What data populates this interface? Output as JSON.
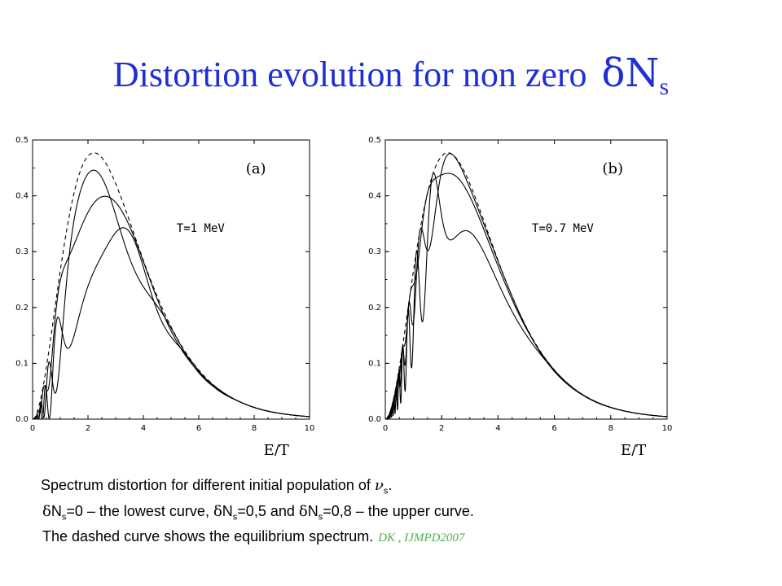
{
  "title": {
    "text": "Distortion  evolution for non zero",
    "symbol": "δN",
    "subscript": "s"
  },
  "chart_data": [
    {
      "type": "line",
      "panel_label": "(a)",
      "annotation": "T=1  MeV",
      "xlabel": "E/T",
      "xlim": [
        0,
        10
      ],
      "ylim": [
        0,
        0.5
      ],
      "x_ticks": [
        "0",
        "2",
        "4",
        "6",
        "8",
        "10"
      ],
      "y_ticks": [
        "0.0",
        "0.1",
        "0.2",
        "0.3",
        "0.4",
        "0.5"
      ],
      "series_params": [
        {
          "style": "dashed",
          "a": 0.0,
          "f0": 0,
          "f1": 0,
          "shift": 0.0
        },
        {
          "style": "solid",
          "a": 0.6,
          "f0": 4.2,
          "f1": 2.4,
          "shift": 0.1
        },
        {
          "style": "solid",
          "a": 0.95,
          "f0": 5.0,
          "f1": 3.1,
          "shift": 0.22
        },
        {
          "style": "solid",
          "a": 1.0,
          "f0": 6.0,
          "f1": 3.8,
          "shift": 0.35
        }
      ]
    },
    {
      "type": "line",
      "panel_label": "(b)",
      "annotation": "T=0.7  MeV",
      "xlabel": "E/T",
      "xlim": [
        0,
        10
      ],
      "ylim": [
        0,
        0.5
      ],
      "x_ticks": [
        "0",
        "2",
        "4",
        "6",
        "8",
        "10"
      ],
      "y_ticks": [
        "0.0",
        "0.1",
        "0.2",
        "0.3",
        "0.4",
        "0.5"
      ],
      "series_params": [
        {
          "style": "dashed",
          "a": 0.0,
          "f0": 0,
          "f1": 0,
          "shift": 0.0
        },
        {
          "style": "solid",
          "a": 0.22,
          "f0": 9.0,
          "f1": 2.3,
          "shift": 0.0
        },
        {
          "style": "solid",
          "a": 0.55,
          "f0": 11.0,
          "f1": 2.6,
          "shift": 0.0
        },
        {
          "style": "solid",
          "a": 0.95,
          "f0": 13.0,
          "f1": 3.0,
          "shift": 0.0
        }
      ]
    }
  ],
  "caption": {
    "line1_text": "Spectrum distortion for different  initial population of ",
    "nu": "ν",
    "line1_sub": "s",
    "line1_end": ".",
    "delta": "δ",
    "line2_a": "N",
    "line2_a_sub": "s",
    "line2_a_rest": "=0 – the lowest curve, ",
    "line2_b": "N",
    "line2_b_sub": "s",
    "line2_b_rest": "=0,5 and ",
    "line2_c": "N",
    "line2_c_sub": "s",
    "line2_c_rest": "=0,8 – the upper curve.",
    "line3": "The dashed curve shows the equilibrium spectrum.",
    "cite": "DK , IJMPD2007"
  },
  "colors": {
    "title": "#1f2fd6",
    "cite": "#4caf50",
    "lines": "#000000"
  }
}
